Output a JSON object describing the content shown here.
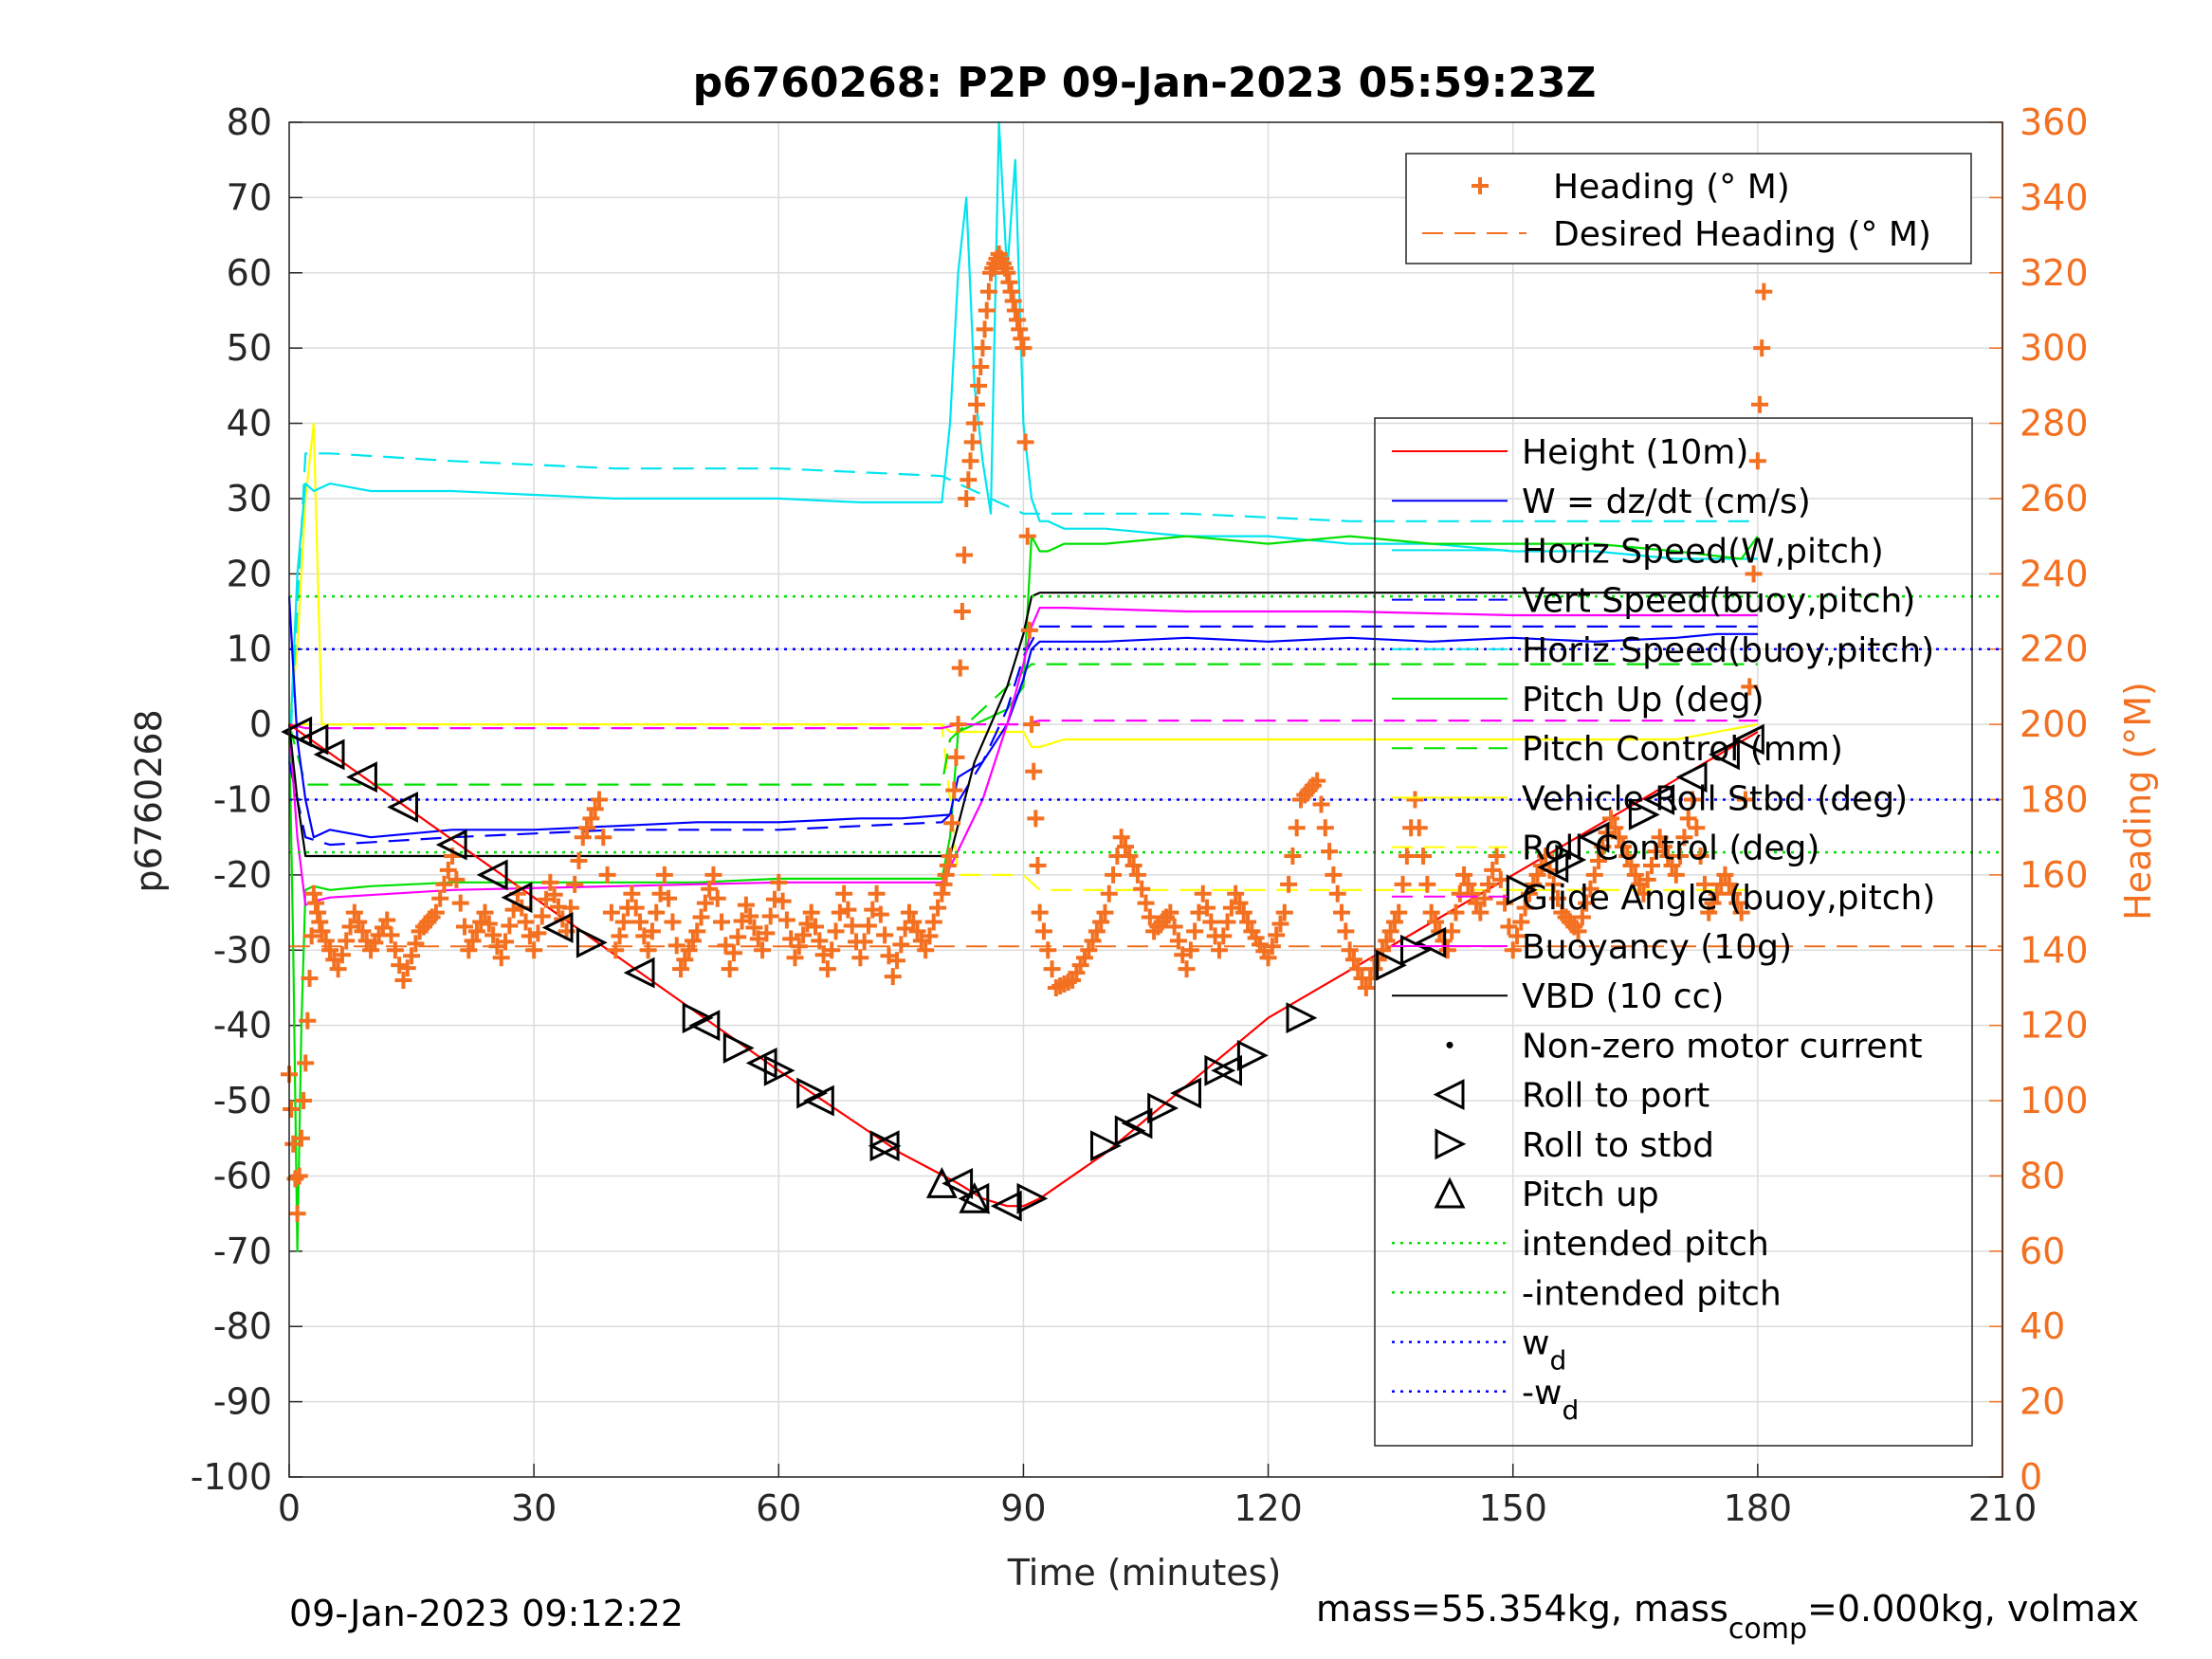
{
  "chart_data": {
    "type": "line",
    "title": "p6760268: P2P 09-Jan-2023 05:59:23Z",
    "xlabel": "Time (minutes)",
    "ylabel": "p6760268",
    "ylabel_right": "Heading (°M)",
    "xlim": [
      0,
      210
    ],
    "ylim": [
      -100,
      80
    ],
    "ylim_right": [
      0,
      360
    ],
    "xticks": [
      "0",
      "30",
      "60",
      "90",
      "120",
      "150",
      "180",
      "210"
    ],
    "yticks": [
      "80",
      "70",
      "60",
      "50",
      "40",
      "30",
      "20",
      "10",
      "0",
      "-10",
      "-20",
      "-30",
      "-40",
      "-50",
      "-60",
      "-70",
      "-80",
      "-90",
      "-100"
    ],
    "yticks_right": [
      "360",
      "340",
      "320",
      "300",
      "280",
      "260",
      "240",
      "220",
      "200",
      "180",
      "160",
      "140",
      "120",
      "100",
      "80",
      "60",
      "40",
      "20",
      "0"
    ],
    "grid": true,
    "footer_left": "09-Jan-2023 09:12:22",
    "footer_right_parts": [
      "mass=55.354kg, mass",
      "comp",
      "=0.000kg, volmax"
    ],
    "heading_legend": {
      "placement": "top-right",
      "entries": [
        "Heading (° M)",
        "Desired Heading (° M)"
      ]
    },
    "main_legend": {
      "placement": "right",
      "entries": [
        "Height (10m)",
        "W = dz/dt (cm/s)",
        "Horiz Speed(W,pitch)",
        "Vert Speed(buoy,pitch)",
        "Horiz Speed(buoy,pitch)",
        "Pitch Up (deg)",
        "Pitch Control (mm)",
        "Vehicle Roll Stbd (deg)",
        "Roll Control (deg)",
        "Glide Angle (buoy,pitch)",
        "Buoyancy (10g)",
        "VBD (10 cc)",
        "Non-zero motor current",
        "Roll to port",
        "Roll to stbd",
        "Pitch up",
        "intended pitch",
        "-intended pitch",
        "w",
        "-w"
      ],
      "subscripts": {
        "18": "d",
        "19": "d"
      }
    },
    "series": [
      {
        "name": "Height (10m)",
        "color": "#ff0000",
        "style": "solid",
        "x": [
          0,
          30,
          60,
          75,
          82,
          85,
          88,
          90,
          92,
          100,
          120,
          150,
          180
        ],
        "y": [
          0,
          -23,
          -46,
          -57,
          -61,
          -63,
          -64,
          -64,
          -63,
          -57,
          -39,
          -20,
          -1
        ]
      },
      {
        "name": "W = dz/dt (cm/s)",
        "color": "#0000ff",
        "style": "solid",
        "x": [
          0,
          1,
          2,
          3,
          5,
          10,
          20,
          30,
          40,
          50,
          60,
          70,
          75,
          81,
          82,
          85,
          88,
          90,
          91,
          92,
          93,
          100,
          110,
          120,
          130,
          140,
          150,
          160,
          170,
          175,
          180
        ],
        "y": [
          17,
          -2,
          -10,
          -15,
          -14,
          -15,
          -14,
          -14,
          -13.5,
          -13,
          -13,
          -12.5,
          -12.5,
          -12,
          -7,
          -5,
          0,
          6,
          10,
          11,
          11,
          11,
          11.5,
          11,
          11.5,
          11,
          11.5,
          11,
          11.5,
          12,
          12
        ]
      },
      {
        "name": "Horiz Speed(W,pitch)",
        "color": "#00e5ee",
        "style": "solid",
        "x": [
          0,
          1,
          2,
          3,
          5,
          10,
          20,
          30,
          40,
          50,
          60,
          70,
          80,
          81,
          82,
          83,
          84,
          85,
          86,
          87,
          88,
          89,
          90,
          91,
          92,
          93,
          95,
          100,
          110,
          120,
          130,
          140,
          150,
          160,
          170,
          180
        ],
        "y": [
          -5,
          20,
          32,
          31,
          32,
          31,
          31,
          30.5,
          30,
          30,
          30,
          29.5,
          29.5,
          40,
          60,
          70,
          45,
          35,
          28,
          80,
          60,
          75,
          40,
          30,
          27,
          27,
          26,
          26,
          25,
          25,
          24,
          24,
          23,
          23,
          22,
          22
        ]
      },
      {
        "name": "Vert Speed(buoy,pitch)",
        "color": "#0000ff",
        "style": "dashed",
        "x": [
          0,
          2,
          5,
          20,
          40,
          60,
          80,
          81,
          85,
          88,
          90,
          92,
          110,
          130,
          150,
          170,
          180
        ],
        "y": [
          -5,
          -15,
          -16,
          -15,
          -14,
          -14,
          -13,
          -12,
          -5,
          2,
          9,
          13,
          13,
          13,
          13,
          13,
          13
        ]
      },
      {
        "name": "Horiz Speed(buoy,pitch)",
        "color": "#00e5ee",
        "style": "dashed",
        "x": [
          0,
          2,
          5,
          20,
          40,
          60,
          80,
          82,
          90,
          92,
          110,
          130,
          150,
          170,
          180
        ],
        "y": [
          -5,
          36,
          36,
          35,
          34,
          34,
          33,
          32,
          28,
          28,
          28,
          27,
          27,
          27,
          27
        ]
      },
      {
        "name": "Pitch Up (deg)",
        "color": "#00e000",
        "style": "solid",
        "x": [
          0,
          0.5,
          1,
          1.5,
          2,
          3,
          5,
          10,
          20,
          30,
          40,
          50,
          60,
          70,
          80,
          81,
          82,
          84,
          86,
          88,
          90,
          91,
          92,
          93,
          95,
          100,
          110,
          120,
          130,
          140,
          150,
          160,
          170,
          178,
          180
        ],
        "y": [
          0,
          -30,
          -70,
          -40,
          -22,
          -21.5,
          -22,
          -21.5,
          -21,
          -21,
          -21,
          -21,
          -20.5,
          -20.5,
          -20.5,
          -15,
          -1,
          0,
          1,
          2,
          5,
          25,
          23,
          23,
          24,
          24,
          25,
          24,
          25,
          24,
          24,
          24,
          23,
          22,
          25
        ]
      },
      {
        "name": "Pitch Control (mm)",
        "color": "#00e000",
        "style": "dashed",
        "x": [
          0,
          2,
          80,
          81,
          91,
          92,
          180
        ],
        "y": [
          0,
          -8,
          -8,
          -2,
          8,
          8,
          8
        ]
      },
      {
        "name": "Vehicle Roll Stbd (deg)",
        "color": "#ffff00",
        "style": "solid",
        "x": [
          0,
          1,
          2,
          3,
          4,
          5,
          10,
          20,
          30,
          40,
          50,
          60,
          70,
          80,
          81,
          90,
          91,
          92,
          95,
          100,
          110,
          120,
          130,
          140,
          150,
          160,
          170,
          180
        ],
        "y": [
          0,
          10,
          30,
          40,
          0,
          0,
          0,
          0,
          0,
          0,
          0,
          0,
          0,
          0,
          -1,
          -1,
          -3,
          -3,
          -2,
          -2,
          -2,
          -2,
          -2,
          -2,
          -2,
          -2,
          -2,
          0
        ]
      },
      {
        "name": "Roll Control (deg)",
        "color": "#ffff00",
        "style": "dashed",
        "x": [
          0,
          2,
          80,
          82,
          90,
          92,
          100,
          180
        ],
        "y": [
          0,
          0,
          0,
          -20,
          -20,
          -22,
          -22,
          -22
        ]
      },
      {
        "name": "Glide Angle (buoy,pitch)",
        "color": "#ff00ff",
        "style": "dashed",
        "x": [
          0,
          2,
          80,
          82,
          90,
          92,
          180
        ],
        "y": [
          0,
          -0.5,
          -0.5,
          0,
          0,
          0.5,
          0.5
        ]
      },
      {
        "name": "Buoyancy (10g)",
        "color": "#ff00ff",
        "style": "solid",
        "x": [
          0,
          1,
          2,
          3,
          5,
          20,
          40,
          60,
          80,
          81,
          85,
          88,
          90,
          91,
          92,
          95,
          110,
          130,
          150,
          170,
          180
        ],
        "y": [
          0,
          -15,
          -24,
          -23.5,
          -23,
          -22,
          -21.5,
          -21,
          -21,
          -19,
          -10,
          0,
          8,
          13,
          15.5,
          15.5,
          15,
          15,
          14.5,
          14.5,
          14.5
        ]
      },
      {
        "name": "VBD (10 cc)",
        "color": "#000000",
        "style": "solid",
        "x": [
          0,
          1,
          2,
          3,
          81,
          84,
          86,
          88,
          90,
          91,
          92,
          180
        ],
        "y": [
          0,
          -10,
          -17.5,
          -17.5,
          -17.5,
          -5,
          0,
          5,
          12,
          17,
          17.5,
          17.5
        ]
      },
      {
        "name": "intended pitch",
        "color": "#00e000",
        "style": "dotted",
        "x": [
          0,
          210
        ],
        "y": [
          17,
          17
        ]
      },
      {
        "name": "-intended pitch",
        "color": "#00e000",
        "style": "dotted",
        "x": [
          0,
          210
        ],
        "y": [
          -17,
          -17
        ]
      },
      {
        "name": "w_d",
        "color": "#0000ff",
        "style": "dotted",
        "x": [
          0,
          210
        ],
        "y": [
          10,
          10
        ]
      },
      {
        "name": "-w_d",
        "color": "#0000ff",
        "style": "dotted",
        "x": [
          0,
          210
        ],
        "y": [
          -10,
          -10
        ]
      }
    ],
    "heading": {
      "name": "Heading (° M)",
      "color": "#f37021",
      "x": [
        0,
        1,
        2,
        3,
        4,
        6,
        8,
        10,
        12,
        14,
        16,
        18,
        20,
        22,
        24,
        26,
        28,
        30,
        32,
        34,
        36,
        38,
        40,
        42,
        44,
        46,
        48,
        50,
        52,
        54,
        56,
        58,
        60,
        62,
        64,
        66,
        68,
        70,
        72,
        74,
        76,
        78,
        80,
        81,
        82,
        83,
        84,
        85,
        86,
        87,
        88,
        89,
        90,
        91,
        92,
        94,
        96,
        98,
        100,
        102,
        104,
        106,
        108,
        110,
        112,
        114,
        116,
        118,
        120,
        122,
        124,
        126,
        128,
        130,
        132,
        134,
        136,
        138,
        140,
        142,
        144,
        146,
        148,
        150,
        152,
        154,
        156,
        158,
        160,
        162,
        164,
        166,
        168,
        170,
        172,
        174,
        176,
        178,
        180,
        181
      ],
      "y": [
        107,
        70,
        110,
        155,
        145,
        135,
        150,
        140,
        148,
        132,
        145,
        150,
        165,
        140,
        150,
        138,
        155,
        140,
        158,
        145,
        170,
        180,
        140,
        155,
        140,
        160,
        135,
        145,
        160,
        135,
        152,
        140,
        158,
        138,
        150,
        135,
        155,
        138,
        155,
        133,
        150,
        140,
        155,
        165,
        200,
        260,
        280,
        300,
        320,
        325,
        320,
        310,
        300,
        200,
        150,
        130,
        132,
        140,
        150,
        170,
        160,
        145,
        150,
        135,
        155,
        140,
        155,
        145,
        138,
        150,
        180,
        185,
        160,
        140,
        130,
        140,
        150,
        180,
        150,
        140,
        160,
        150,
        165,
        140,
        155,
        165,
        150,
        145,
        160,
        175,
        165,
        155,
        170,
        160,
        180,
        150,
        160,
        150,
        270,
        330
      ]
    },
    "desired_heading": {
      "name": "Desired Heading (° M)",
      "color": "#f37021",
      "x": [
        0,
        210
      ],
      "y": [
        141,
        141
      ]
    },
    "roll_to_port_markers": {
      "x": [
        1,
        3,
        5,
        9,
        14,
        20,
        25,
        28,
        33,
        43,
        51,
        58,
        65,
        73,
        82,
        84,
        88,
        104,
        110,
        115,
        140,
        155,
        160,
        168,
        172,
        176,
        179
      ],
      "y": [
        -1,
        -2,
        -4,
        -7,
        -11,
        -16,
        -20,
        -23,
        -27,
        -33,
        -40,
        -45,
        -50,
        -56,
        -61,
        -63,
        -64,
        -53,
        -49,
        -46,
        -29,
        -19,
        -15,
        -10,
        -7,
        -4,
        -2
      ]
    },
    "roll_to_stbd_markers": {
      "x": [
        37,
        50,
        55,
        60,
        64,
        73,
        91,
        100,
        103,
        107,
        114,
        118,
        124,
        135,
        138,
        151,
        157,
        166
      ],
      "y": [
        -29,
        -39,
        -43,
        -46,
        -49,
        -56,
        -63,
        -56,
        -54,
        -51,
        -46,
        -44,
        -39,
        -32,
        -30,
        -22,
        -18,
        -12
      ]
    },
    "pitch_up_markers": {
      "x": [
        80,
        84
      ],
      "y": [
        -61,
        -63
      ]
    }
  }
}
